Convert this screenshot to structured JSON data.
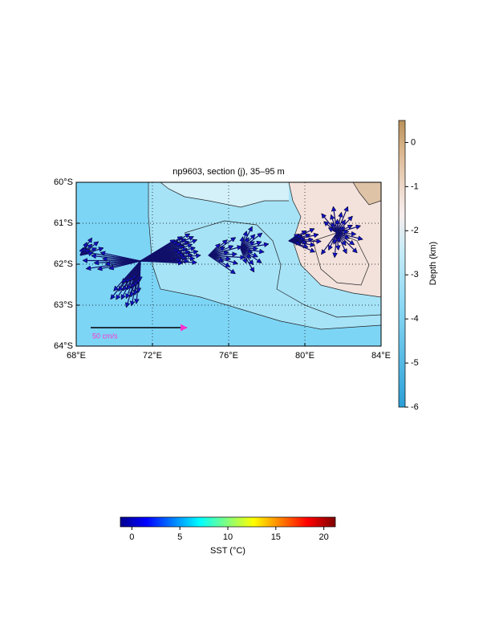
{
  "map": {
    "title": "np9603, section (j), 35–95 m",
    "xlim": [
      68,
      84
    ],
    "ylim": [
      -60,
      -64
    ],
    "xticks": [
      {
        "value": 68,
        "label": "68°E"
      },
      {
        "value": 72,
        "label": "72°E"
      },
      {
        "value": 76,
        "label": "76°E"
      },
      {
        "value": 80,
        "label": "80°E"
      },
      {
        "value": 84,
        "label": "84°E"
      }
    ],
    "yticks": [
      {
        "value": -60,
        "label": "60°S"
      },
      {
        "value": -61,
        "label": "61°S"
      },
      {
        "value": -62,
        "label": "62°S"
      },
      {
        "value": -63,
        "label": "63°S"
      },
      {
        "value": -64,
        "label": "64°S"
      }
    ],
    "scale_label": "50 cm/s"
  },
  "depth_colorbar": {
    "label": "Depth (km)",
    "lim": [
      -6,
      0.5
    ],
    "ticks": [
      0,
      -1,
      -2,
      -3,
      -4,
      -5,
      -6
    ]
  },
  "sst_colorbar": {
    "label": "SST (°C)",
    "lim": [
      -1.2,
      21.2
    ],
    "ticks": [
      0,
      5,
      10,
      15,
      20
    ]
  }
}
